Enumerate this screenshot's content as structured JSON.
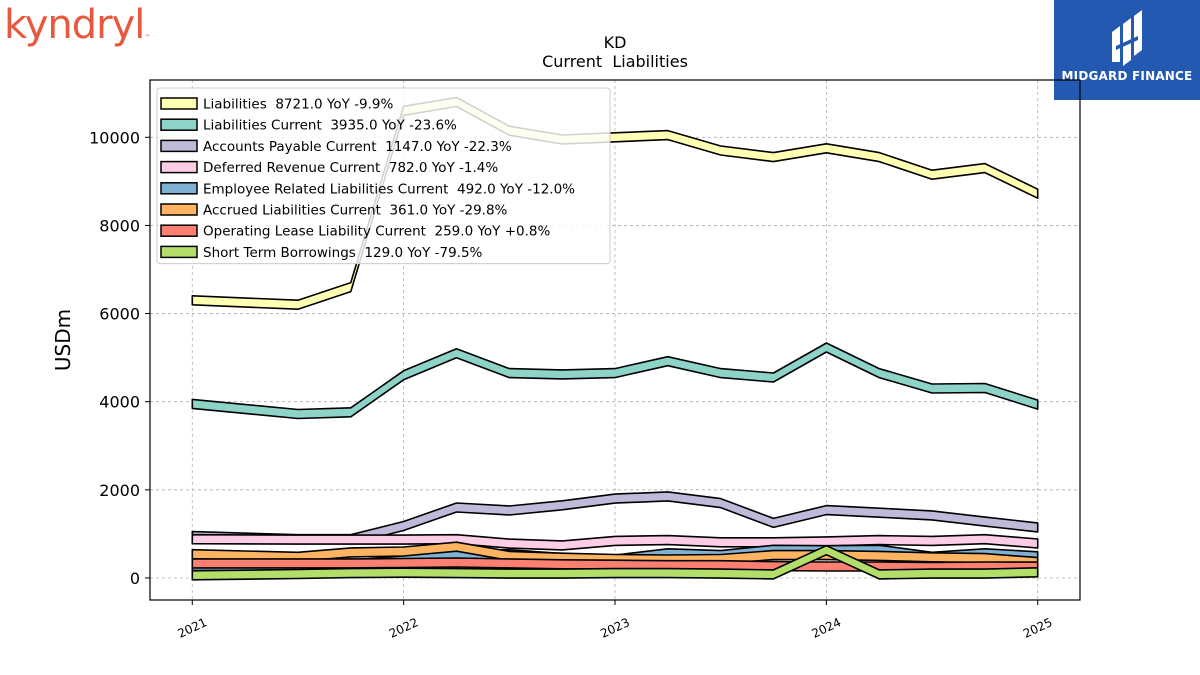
{
  "logo_left": {
    "text": "kyndryl"
  },
  "logo_right": {
    "text": "MIDGARD FINANCE"
  },
  "chart_data": {
    "type": "area",
    "title": "KD",
    "subtitle": "Current  Liabilities",
    "ylabel": "USDm",
    "xlabel": "",
    "ylim": [
      -500,
      11300
    ],
    "xlim": [
      2020.8,
      2025.2
    ],
    "yticks": [
      0,
      2000,
      4000,
      6000,
      8000,
      10000
    ],
    "xticks": [
      2021,
      2022,
      2023,
      2024,
      2025
    ],
    "grid": true,
    "legend_position": "top-left",
    "x": [
      2021.0,
      2021.5,
      2021.75,
      2022.0,
      2022.25,
      2022.5,
      2022.75,
      2023.0,
      2023.25,
      2023.5,
      2023.75,
      2024.0,
      2024.25,
      2024.5,
      2024.75,
      2025.0
    ],
    "series": [
      {
        "name": "Liabilities",
        "legend": "Liabilities  8721.0 YoY -9.9%",
        "color": "#ffffb3",
        "values": [
          6300,
          6200,
          6600,
          10600,
          10800,
          10150,
          9950,
          10000,
          10050,
          9700,
          9550,
          9750,
          9550,
          9150,
          9300,
          8721
        ]
      },
      {
        "name": "Liabilities Current",
        "legend": "Liabilities Current  3935.0 YoY -23.6%",
        "color": "#8dd3c7",
        "values": [
          3950,
          3720,
          3760,
          4600,
          5100,
          4650,
          4620,
          4650,
          4920,
          4650,
          4550,
          5230,
          4650,
          4300,
          4310,
          3935
        ]
      },
      {
        "name": "Accounts Payable Current",
        "legend": "Accounts Payable Current  1147.0 YoY -22.3%",
        "color": "#bebada",
        "values": [
          950,
          880,
          880,
          1180,
          1600,
          1530,
          1650,
          1800,
          1850,
          1700,
          1250,
          1540,
          1480,
          1420,
          1280,
          1147
        ]
      },
      {
        "name": "Deferred Revenue Current",
        "legend": "Deferred Revenue Current  782.0 YoY -1.4%",
        "color": "#fccde5",
        "values": [
          880,
          870,
          870,
          870,
          880,
          780,
          740,
          840,
          860,
          810,
          810,
          830,
          860,
          840,
          880,
          782
        ]
      },
      {
        "name": "Employee Related Liabilities Current",
        "legend": "Employee Related Liabilities Current  492.0 YoY -12.0%",
        "color": "#80b1d3",
        "values": [
          270,
          280,
          300,
          400,
          520,
          540,
          450,
          420,
          560,
          520,
          640,
          630,
          640,
          480,
          560,
          492
        ]
      },
      {
        "name": "Accrued Liabilities Current",
        "legend": "Accrued Liabilities Current  361.0 YoY -29.8%",
        "color": "#fdb462",
        "values": [
          540,
          480,
          580,
          600,
          710,
          500,
          460,
          430,
          420,
          430,
          520,
          520,
          500,
          470,
          450,
          361
        ]
      },
      {
        "name": "Operating Lease Liability Current",
        "legend": "Operating Lease Liability Current  259.0 YoY +0.8%",
        "color": "#fb8072",
        "values": [
          330,
          330,
          330,
          340,
          350,
          330,
          310,
          300,
          290,
          290,
          270,
          260,
          260,
          250,
          260,
          259
        ]
      },
      {
        "name": "Short Term Borrowings",
        "legend": "Short Term Borrowings  129.0 YoY -79.5%",
        "color": "#b3de69",
        "values": [
          60,
          90,
          110,
          120,
          110,
          100,
          100,
          110,
          110,
          100,
          80,
          630,
          80,
          100,
          100,
          129
        ]
      }
    ]
  }
}
